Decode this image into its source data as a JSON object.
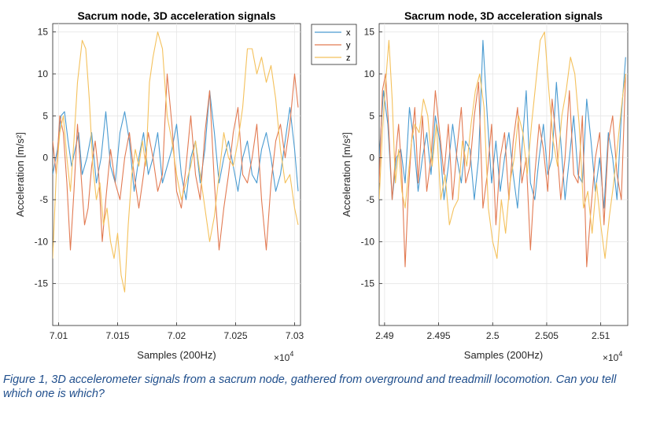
{
  "figure": {
    "caption": "Figure 1, 3D accelerometer signals from a sacrum node, gathered from overground and treadmill locomotion. Can you tell which one is which?",
    "series_colors": {
      "x": "#4a9bd1",
      "y": "#e27a52",
      "z": "#f4c15c"
    }
  },
  "chart_data": [
    {
      "type": "line",
      "title": "Sacrum node, 3D acceleration signals",
      "xlabel": "Samples (200Hz)",
      "ylabel": "Acceleration [m/s²]",
      "x_multiplier": "×10",
      "x_multiplier_exp": "4",
      "xlim": [
        7.0095,
        7.0305
      ],
      "ylim": [
        -20,
        16
      ],
      "xticks": [
        7.01,
        7.015,
        7.02,
        7.025,
        7.03
      ],
      "xtick_labels": [
        "7.01",
        "7.015",
        "7.02",
        "7.025",
        "7.03"
      ],
      "yticks": [
        -15,
        -10,
        -5,
        0,
        5,
        10,
        15
      ],
      "ytick_labels": [
        "-15",
        "-10",
        "-5",
        "0",
        "5",
        "10",
        "15"
      ],
      "grid": true,
      "legend": {
        "position": "top-right",
        "entries": [
          "x",
          "y",
          "z"
        ]
      },
      "series": [
        {
          "name": "x",
          "color": "#4a9bd1",
          "x": [
            7.0095,
            7.0099,
            7.0102,
            7.0105,
            7.0108,
            7.0111,
            7.0114,
            7.0117,
            7.012,
            7.0124,
            7.0128,
            7.0132,
            7.0136,
            7.014,
            7.0144,
            7.0148,
            7.0152,
            7.0156,
            7.016,
            7.0164,
            7.0168,
            7.0172,
            7.0176,
            7.018,
            7.0184,
            7.0188,
            7.0192,
            7.0196,
            7.02,
            7.0204,
            7.0208,
            7.0212,
            7.0216,
            7.022,
            7.0224,
            7.0228,
            7.0232,
            7.0236,
            7.024,
            7.0244,
            7.0248,
            7.0252,
            7.0256,
            7.026,
            7.0264,
            7.0268,
            7.0272,
            7.0276,
            7.028,
            7.0284,
            7.0288,
            7.0292,
            7.0296,
            7.03,
            7.0303
          ],
          "y": [
            -2,
            1,
            5,
            5.5,
            2,
            -1,
            1,
            3,
            -2,
            0,
            3,
            -3,
            0,
            5.5,
            -1,
            -3,
            3,
            5.5,
            2,
            -4,
            0,
            3,
            -2,
            0,
            3,
            -3,
            -1,
            1,
            4,
            -2,
            -5,
            0,
            2,
            -3,
            1,
            8,
            3,
            -3,
            0,
            2,
            -1,
            -4,
            0,
            2,
            -2,
            -3,
            1,
            3,
            0,
            -4,
            -2,
            2,
            6,
            1,
            -4
          ]
        },
        {
          "name": "y",
          "color": "#e27a52",
          "x": [
            7.0095,
            7.0098,
            7.0101,
            7.0104,
            7.0107,
            7.011,
            7.0113,
            7.0116,
            7.0119,
            7.0122,
            7.0125,
            7.0128,
            7.0131,
            7.0134,
            7.0137,
            7.014,
            7.0144,
            7.0148,
            7.0152,
            7.0156,
            7.016,
            7.0164,
            7.0168,
            7.0172,
            7.0176,
            7.018,
            7.0184,
            7.0188,
            7.0192,
            7.0196,
            7.02,
            7.0204,
            7.0208,
            7.0212,
            7.0216,
            7.022,
            7.0224,
            7.0228,
            7.0232,
            7.0236,
            7.024,
            7.0244,
            7.0248,
            7.0252,
            7.0256,
            7.026,
            7.0264,
            7.0268,
            7.0272,
            7.0276,
            7.028,
            7.0284,
            7.0288,
            7.0292,
            7.0296,
            7.03,
            7.0303
          ],
          "y": [
            2,
            -2,
            5,
            3,
            -3,
            -11,
            -4,
            4,
            -2,
            -8,
            -6,
            -1,
            2,
            -2,
            -10,
            -5,
            1,
            -3,
            -5,
            0,
            3,
            -2,
            -6,
            -2,
            3,
            0,
            -4,
            -2,
            10,
            4,
            -4,
            -6,
            -1,
            5,
            -2,
            -5,
            3,
            8,
            -3,
            -11,
            -6,
            -2,
            3,
            6,
            -2,
            -3,
            0,
            4,
            -5,
            -11,
            -3,
            2,
            4,
            0,
            4,
            10,
            6
          ]
        },
        {
          "name": "z",
          "color": "#f4c15c",
          "x": [
            7.0095,
            7.0098,
            7.0101,
            7.0104,
            7.0107,
            7.011,
            7.0113,
            7.0116,
            7.012,
            7.0123,
            7.0126,
            7.0129,
            7.0132,
            7.0135,
            7.0138,
            7.0141,
            7.0144,
            7.0147,
            7.015,
            7.0153,
            7.0156,
            7.0159,
            7.0162,
            7.0165,
            7.0168,
            7.0171,
            7.0174,
            7.0177,
            7.018,
            7.0184,
            7.0188,
            7.0192,
            7.0196,
            7.02,
            7.0204,
            7.0208,
            7.0212,
            7.0216,
            7.022,
            7.0224,
            7.0228,
            7.0232,
            7.0236,
            7.024,
            7.0244,
            7.0248,
            7.0252,
            7.0256,
            7.026,
            7.0264,
            7.0268,
            7.0272,
            7.0276,
            7.028,
            7.0284,
            7.0288,
            7.0292,
            7.0296,
            7.03,
            7.0303
          ],
          "y": [
            -12,
            -2,
            3,
            5,
            0,
            -4,
            2,
            9,
            14,
            13,
            7,
            -1,
            -5,
            -3,
            -8,
            -6,
            -10,
            -12,
            -9,
            -14,
            -16,
            -8,
            -2,
            1,
            -1,
            2,
            -1,
            9,
            12,
            15,
            13,
            5,
            2,
            -2,
            -5,
            -3,
            -1,
            2,
            -2,
            -6,
            -10,
            -7,
            -2,
            3,
            0,
            -1,
            2,
            6,
            13,
            13,
            10,
            12,
            9,
            11,
            7,
            1,
            -3,
            -2,
            -6,
            -8
          ]
        }
      ]
    },
    {
      "type": "line",
      "title": "Sacrum node, 3D acceleration signals",
      "xlabel": "Samples (200Hz)",
      "ylabel": "Acceleration [m/s²]",
      "x_multiplier": "×10",
      "x_multiplier_exp": "4",
      "xlim": [
        2.4895,
        2.5125
      ],
      "ylim": [
        -20,
        16
      ],
      "xticks": [
        2.49,
        2.495,
        2.5,
        2.505,
        2.51
      ],
      "xtick_labels": [
        "2.49",
        "2.495",
        "2.5",
        "2.505",
        "2.51"
      ],
      "yticks": [
        -15,
        -10,
        -5,
        0,
        5,
        10,
        15
      ],
      "ytick_labels": [
        "-15",
        "-10",
        "-5",
        "0",
        "5",
        "10",
        "15"
      ],
      "grid": true,
      "series": [
        {
          "name": "x",
          "color": "#4a9bd1",
          "x": [
            2.4895,
            2.4899,
            2.4903,
            2.4907,
            2.4911,
            2.4915,
            2.4919,
            2.4923,
            2.4927,
            2.4931,
            2.4935,
            2.4939,
            2.4943,
            2.4947,
            2.4951,
            2.4955,
            2.4959,
            2.4963,
            2.4967,
            2.4971,
            2.4975,
            2.4979,
            2.4983,
            2.4987,
            2.4991,
            2.4995,
            2.4999,
            2.5003,
            2.5007,
            2.5011,
            2.5015,
            2.5019,
            2.5023,
            2.5027,
            2.5031,
            2.5035,
            2.5039,
            2.5043,
            2.5047,
            2.5051,
            2.5055,
            2.5059,
            2.5063,
            2.5067,
            2.5071,
            2.5075,
            2.5079,
            2.5083,
            2.5087,
            2.5091,
            2.5095,
            2.5099,
            2.5103,
            2.5107,
            2.5111,
            2.5115,
            2.5119,
            2.5123
          ],
          "y": [
            0,
            8,
            4,
            -5,
            0,
            1,
            -3,
            6,
            2,
            -4,
            0,
            3,
            -2,
            5,
            2,
            -5,
            -1,
            4,
            0,
            -3,
            2,
            1,
            -5,
            0,
            14,
            5,
            -3,
            2,
            -4,
            0,
            3,
            -2,
            -6,
            1,
            8,
            -3,
            -5,
            0,
            4,
            -2,
            0,
            9,
            2,
            -5,
            0,
            5,
            -2,
            -3,
            7,
            2,
            -4,
            0,
            -6,
            3,
            0,
            -5,
            5,
            12
          ]
        },
        {
          "name": "y",
          "color": "#e27a52",
          "x": [
            2.4895,
            2.4898,
            2.4901,
            2.4904,
            2.4907,
            2.491,
            2.4913,
            2.4916,
            2.4919,
            2.4922,
            2.4925,
            2.4928,
            2.4931,
            2.4935,
            2.4939,
            2.4943,
            2.4947,
            2.4951,
            2.4955,
            2.4959,
            2.4963,
            2.4967,
            2.4971,
            2.4975,
            2.4979,
            2.4983,
            2.4987,
            2.4991,
            2.4995,
            2.4999,
            2.5003,
            2.5007,
            2.5011,
            2.5015,
            2.5019,
            2.5023,
            2.5027,
            2.5031,
            2.5035,
            2.5039,
            2.5043,
            2.5047,
            2.5051,
            2.5055,
            2.5059,
            2.5063,
            2.5067,
            2.5071,
            2.5075,
            2.5079,
            2.5083,
            2.5087,
            2.5091,
            2.5095,
            2.5099,
            2.5103,
            2.5107,
            2.5111,
            2.5115,
            2.5119,
            2.5123
          ],
          "y": [
            -3,
            8,
            10,
            3,
            -5,
            0,
            4,
            -2,
            -13,
            -4,
            2,
            6,
            -3,
            5,
            -4,
            0,
            8,
            3,
            -2,
            4,
            -5,
            1,
            6,
            -3,
            -1,
            5,
            9,
            -6,
            -2,
            4,
            -8,
            0,
            3,
            -5,
            2,
            6,
            -3,
            0,
            -11,
            -2,
            4,
            1,
            -4,
            7,
            2,
            -5,
            0,
            8,
            -2,
            -3,
            5,
            -13,
            -6,
            0,
            3,
            -8,
            2,
            5,
            -2,
            -5,
            10
          ]
        },
        {
          "name": "z",
          "color": "#f4c15c",
          "x": [
            2.4895,
            2.4898,
            2.4901,
            2.4904,
            2.4907,
            2.491,
            2.4913,
            2.4916,
            2.4919,
            2.4922,
            2.4925,
            2.4928,
            2.4932,
            2.4936,
            2.494,
            2.4944,
            2.4948,
            2.4952,
            2.4956,
            2.496,
            2.4964,
            2.4968,
            2.4972,
            2.4976,
            2.498,
            2.4984,
            2.4988,
            2.4992,
            2.4996,
            2.5,
            2.5004,
            2.5008,
            2.5012,
            2.5016,
            2.502,
            2.5024,
            2.5028,
            2.5032,
            2.5036,
            2.504,
            2.5044,
            2.5048,
            2.5052,
            2.5056,
            2.506,
            2.5064,
            2.5068,
            2.5072,
            2.5076,
            2.508,
            2.5084,
            2.5088,
            2.5092,
            2.5096,
            2.51,
            2.5104,
            2.5108,
            2.5112,
            2.5116,
            2.512,
            2.5123
          ],
          "y": [
            -5,
            3,
            9,
            14,
            7,
            -3,
            1,
            -4,
            -6,
            -2,
            2,
            4,
            3,
            7,
            5,
            -1,
            4,
            -5,
            -2,
            -8,
            -6,
            -5,
            2,
            -1,
            4,
            8,
            10,
            6,
            -6,
            -10,
            -12,
            -5,
            -9,
            -3,
            0,
            5,
            3,
            -2,
            4,
            9,
            14,
            15,
            8,
            2,
            -1,
            5,
            8,
            12,
            10,
            4,
            -6,
            -4,
            -9,
            -3,
            -8,
            -12,
            -7,
            -3,
            2,
            7,
            10
          ]
        }
      ]
    }
  ]
}
